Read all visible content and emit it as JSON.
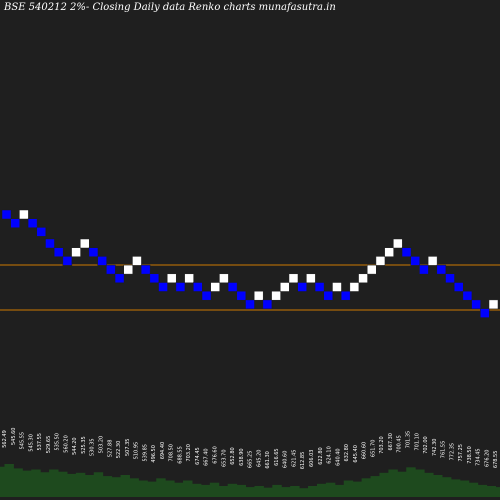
{
  "header": {
    "title": "BSE 540212  2%-  Closing Daily data  Renko  charts munafasutra.in"
  },
  "colors": {
    "background": "#1f1f1f",
    "up_brick": "#ffffff",
    "down_brick": "#0000ff",
    "level_line": "#cc7a00",
    "volume": "#1e4a1e",
    "label": "#ffffff"
  },
  "chart_data": {
    "type": "renko",
    "brick_percent": 2,
    "levels": [
      0.2,
      0.38
    ],
    "bricks": [
      {
        "step": 0,
        "level": 0.0,
        "dir": "down"
      },
      {
        "step": 1,
        "level": 0.03,
        "dir": "down"
      },
      {
        "step": 2,
        "level": 0.0,
        "dir": "up"
      },
      {
        "step": 3,
        "level": 0.03,
        "dir": "down"
      },
      {
        "step": 4,
        "level": 0.06,
        "dir": "down"
      },
      {
        "step": 5,
        "level": 0.1,
        "dir": "down"
      },
      {
        "step": 6,
        "level": 0.13,
        "dir": "down"
      },
      {
        "step": 7,
        "level": 0.16,
        "dir": "down"
      },
      {
        "step": 8,
        "level": 0.13,
        "dir": "up"
      },
      {
        "step": 9,
        "level": 0.1,
        "dir": "up"
      },
      {
        "step": 10,
        "level": 0.13,
        "dir": "down"
      },
      {
        "step": 11,
        "level": 0.16,
        "dir": "down"
      },
      {
        "step": 12,
        "level": 0.19,
        "dir": "down"
      },
      {
        "step": 13,
        "level": 0.22,
        "dir": "down"
      },
      {
        "step": 14,
        "level": 0.19,
        "dir": "up"
      },
      {
        "step": 15,
        "level": 0.16,
        "dir": "up"
      },
      {
        "step": 16,
        "level": 0.19,
        "dir": "down"
      },
      {
        "step": 17,
        "level": 0.22,
        "dir": "down"
      },
      {
        "step": 18,
        "level": 0.25,
        "dir": "down"
      },
      {
        "step": 19,
        "level": 0.22,
        "dir": "up"
      },
      {
        "step": 20,
        "level": 0.25,
        "dir": "down"
      },
      {
        "step": 21,
        "level": 0.22,
        "dir": "up"
      },
      {
        "step": 22,
        "level": 0.25,
        "dir": "down"
      },
      {
        "step": 23,
        "level": 0.28,
        "dir": "down"
      },
      {
        "step": 24,
        "level": 0.25,
        "dir": "up"
      },
      {
        "step": 25,
        "level": 0.22,
        "dir": "up"
      },
      {
        "step": 26,
        "level": 0.25,
        "dir": "down"
      },
      {
        "step": 27,
        "level": 0.28,
        "dir": "down"
      },
      {
        "step": 28,
        "level": 0.31,
        "dir": "down"
      },
      {
        "step": 29,
        "level": 0.28,
        "dir": "up"
      },
      {
        "step": 30,
        "level": 0.31,
        "dir": "down"
      },
      {
        "step": 31,
        "level": 0.28,
        "dir": "up"
      },
      {
        "step": 32,
        "level": 0.25,
        "dir": "up"
      },
      {
        "step": 33,
        "level": 0.22,
        "dir": "up"
      },
      {
        "step": 34,
        "level": 0.25,
        "dir": "down"
      },
      {
        "step": 35,
        "level": 0.22,
        "dir": "up"
      },
      {
        "step": 36,
        "level": 0.25,
        "dir": "down"
      },
      {
        "step": 37,
        "level": 0.28,
        "dir": "down"
      },
      {
        "step": 38,
        "level": 0.25,
        "dir": "up"
      },
      {
        "step": 39,
        "level": 0.28,
        "dir": "down"
      },
      {
        "step": 40,
        "level": 0.25,
        "dir": "up"
      },
      {
        "step": 41,
        "level": 0.22,
        "dir": "up"
      },
      {
        "step": 42,
        "level": 0.19,
        "dir": "up"
      },
      {
        "step": 43,
        "level": 0.16,
        "dir": "up"
      },
      {
        "step": 44,
        "level": 0.13,
        "dir": "up"
      },
      {
        "step": 45,
        "level": 0.1,
        "dir": "up"
      },
      {
        "step": 46,
        "level": 0.13,
        "dir": "down"
      },
      {
        "step": 47,
        "level": 0.16,
        "dir": "down"
      },
      {
        "step": 48,
        "level": 0.19,
        "dir": "down"
      },
      {
        "step": 49,
        "level": 0.16,
        "dir": "up"
      },
      {
        "step": 50,
        "level": 0.19,
        "dir": "down"
      },
      {
        "step": 51,
        "level": 0.22,
        "dir": "down"
      },
      {
        "step": 52,
        "level": 0.25,
        "dir": "down"
      },
      {
        "step": 53,
        "level": 0.28,
        "dir": "down"
      },
      {
        "step": 54,
        "level": 0.31,
        "dir": "down"
      },
      {
        "step": 55,
        "level": 0.34,
        "dir": "down"
      },
      {
        "step": 56,
        "level": 0.31,
        "dir": "up"
      }
    ],
    "volume": [
      0.55,
      0.6,
      0.52,
      0.48,
      0.5,
      0.45,
      0.5,
      0.46,
      0.42,
      0.44,
      0.4,
      0.45,
      0.38,
      0.36,
      0.4,
      0.34,
      0.3,
      0.28,
      0.34,
      0.3,
      0.26,
      0.3,
      0.24,
      0.22,
      0.26,
      0.2,
      0.24,
      0.22,
      0.18,
      0.2,
      0.17,
      0.22,
      0.18,
      0.2,
      0.16,
      0.2,
      0.24,
      0.26,
      0.22,
      0.3,
      0.28,
      0.34,
      0.38,
      0.44,
      0.5,
      0.46,
      0.54,
      0.5,
      0.44,
      0.4,
      0.36,
      0.32,
      0.3,
      0.26,
      0.22,
      0.2,
      0.18
    ],
    "tick_labels": [
      "562.49",
      "545.60",
      "545.55",
      "545.30",
      "537.55",
      "529.65",
      "535.50",
      "560.20",
      "544.20",
      "525.35",
      "530.35",
      "503.20",
      "527.88",
      "522.30",
      "507.35",
      "510.95",
      "539.85",
      "496.50",
      "694.40",
      "708.50",
      "688.55",
      "703.20",
      "674.45",
      "667.40",
      "676.60",
      "653.70",
      "652.80",
      "638.90",
      "665.25",
      "645.20",
      "661.30",
      "616.65",
      "640.60",
      "621.45",
      "612.85",
      "606.03",
      "622.80",
      "624.10",
      "640.40",
      "632.80",
      "645.40",
      "660.60",
      "651.70",
      "703.20",
      "667.30",
      "700.45",
      "701.35",
      "701.10",
      "702.00",
      "742.30",
      "761.55",
      "772.35",
      "757.25",
      "738.50",
      "734.45",
      "676.20",
      "678.55"
    ]
  }
}
